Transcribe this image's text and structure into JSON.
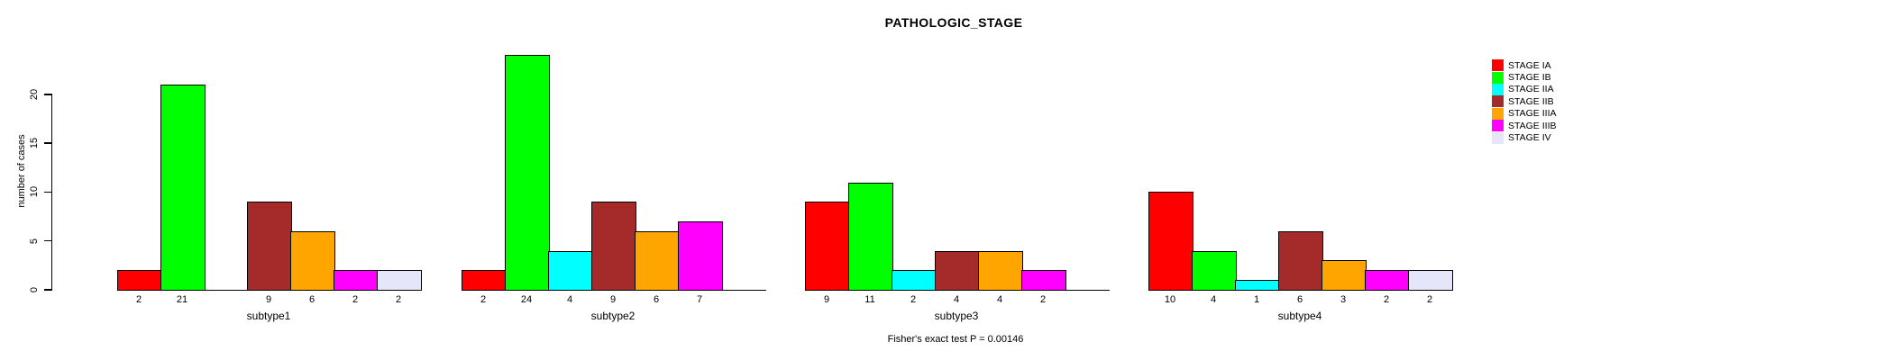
{
  "chart_data": {
    "type": "bar",
    "title": "PATHOLOGIC_STAGE",
    "ylabel": "number of cases",
    "ylim": [
      0,
      24
    ],
    "yticks": [
      0,
      5,
      10,
      15,
      20
    ],
    "grid": false,
    "legend_position": "right",
    "categories": [
      "subtype1",
      "subtype2",
      "subtype3",
      "subtype4"
    ],
    "series": [
      {
        "name": "STAGE IA",
        "color": "#FF0000",
        "values": [
          2,
          2,
          9,
          10
        ]
      },
      {
        "name": "STAGE IB",
        "color": "#00FF00",
        "values": [
          21,
          24,
          11,
          4
        ]
      },
      {
        "name": "STAGE IIA",
        "color": "#00FFFF",
        "values": [
          0,
          4,
          2,
          1
        ]
      },
      {
        "name": "STAGE IIB",
        "color": "#A52A2A",
        "values": [
          9,
          9,
          4,
          6
        ]
      },
      {
        "name": "STAGE IIIA",
        "color": "#FFA500",
        "values": [
          6,
          6,
          4,
          3
        ]
      },
      {
        "name": "STAGE IIIB",
        "color": "#FF00FF",
        "values": [
          2,
          7,
          2,
          2
        ]
      },
      {
        "name": "STAGE IV",
        "color": "#E6E6FA",
        "values": [
          2,
          0,
          0,
          2
        ]
      }
    ],
    "bar_value_labels_shown": true,
    "annotation": "Fisher's exact test P = 0.00146"
  }
}
